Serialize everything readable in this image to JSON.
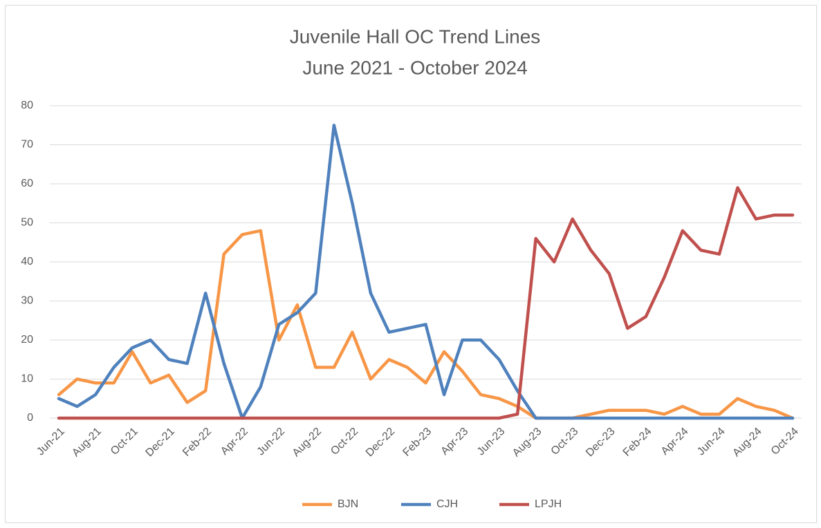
{
  "chart_data": {
    "type": "line",
    "title": "Juvenile Hall OC Trend Lines",
    "subtitle": "June 2021 - October 2024",
    "categories": [
      "Jun-21",
      null,
      "Aug-21",
      null,
      "Oct-21",
      null,
      "Dec-21",
      null,
      "Feb-22",
      null,
      "Apr-22",
      null,
      "Jun-22",
      null,
      "Aug-22",
      null,
      "Oct-22",
      null,
      "Dec-22",
      null,
      "Feb-23",
      null,
      "Apr-23",
      null,
      "Jun-23",
      null,
      "Aug-23",
      null,
      "Oct-23",
      null,
      "Dec-23",
      null,
      "Feb-24",
      null,
      "Apr-24",
      null,
      "Jun-24",
      null,
      "Aug-24",
      null,
      "Oct-24"
    ],
    "series": [
      {
        "name": "BJN",
        "color": "#f79646",
        "values": [
          6,
          10,
          9,
          9,
          17,
          9,
          11,
          4,
          7,
          42,
          47,
          48,
          20,
          29,
          13,
          13,
          22,
          10,
          15,
          13,
          9,
          17,
          12,
          6,
          5,
          3,
          0,
          0,
          0,
          1,
          2,
          2,
          2,
          1,
          3,
          1,
          1,
          5,
          3,
          2,
          0
        ]
      },
      {
        "name": "CJH",
        "color": "#4f81bd",
        "values": [
          5,
          3,
          6,
          13,
          18,
          20,
          15,
          14,
          32,
          14,
          0,
          8,
          24,
          27,
          32,
          75,
          55,
          32,
          22,
          23,
          24,
          6,
          20,
          20,
          15,
          7,
          0,
          0,
          0,
          0,
          0,
          0,
          0,
          0,
          0,
          0,
          0,
          0,
          0,
          0,
          0
        ]
      },
      {
        "name": "LPJH",
        "color": "#c0504d",
        "values": [
          0,
          0,
          0,
          0,
          0,
          0,
          0,
          0,
          0,
          0,
          0,
          0,
          0,
          0,
          0,
          0,
          0,
          0,
          0,
          0,
          0,
          0,
          0,
          0,
          0,
          1,
          46,
          40,
          51,
          43,
          37,
          23,
          26,
          36,
          48,
          43,
          42,
          59,
          51,
          52,
          52
        ]
      }
    ],
    "ylim": [
      0,
      80
    ],
    "yticks": [
      0,
      10,
      20,
      30,
      40,
      50,
      60,
      70,
      80
    ],
    "grid": true,
    "legend": "bottom"
  }
}
